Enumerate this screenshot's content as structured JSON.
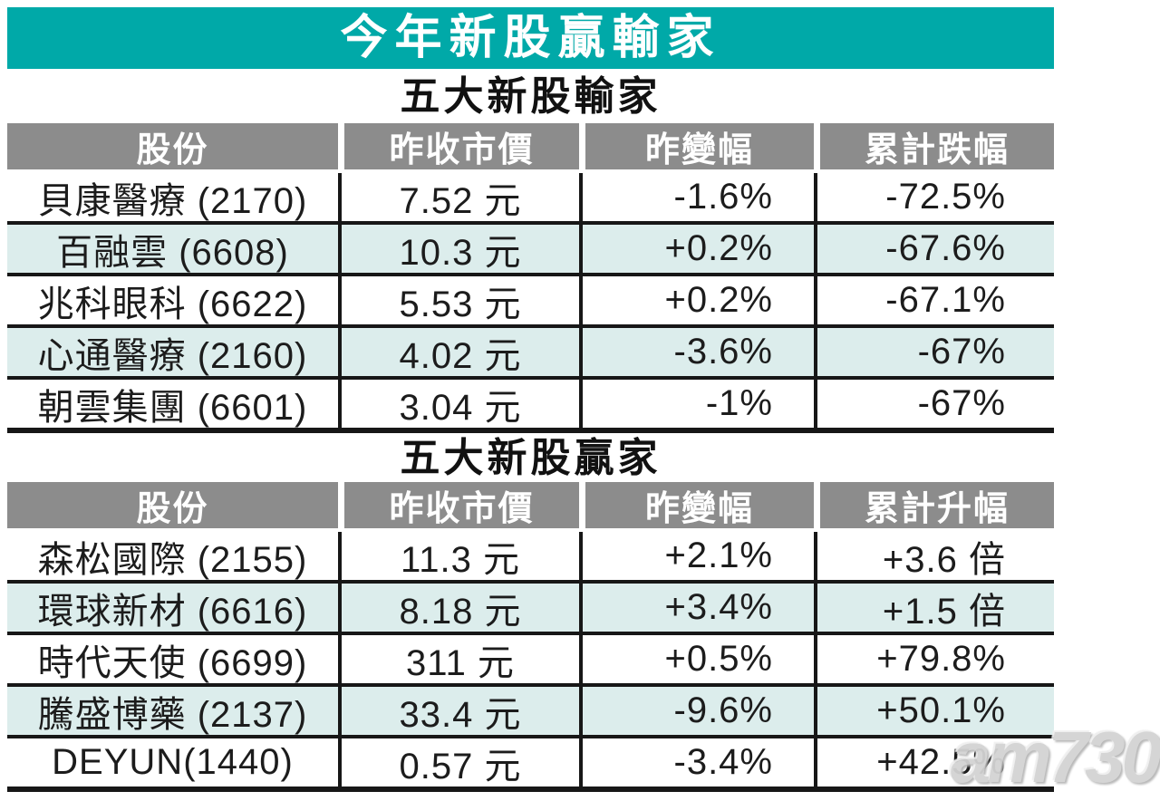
{
  "banner": {
    "title": "今年新股贏輸家"
  },
  "losers": {
    "section_title": "五大新股輸家",
    "headers": [
      "股份",
      "昨收市價",
      "昨變幅",
      "累計跌幅"
    ],
    "rows": [
      {
        "stock": "貝康醫療 (2170)",
        "price": "7.52 元",
        "change": "-1.6%",
        "total": "-72.5%"
      },
      {
        "stock": "百融雲 (6608)",
        "price": "10.3 元",
        "change": "+0.2%",
        "total": "-67.6%"
      },
      {
        "stock": "兆科眼科 (6622)",
        "price": "5.53 元",
        "change": "+0.2%",
        "total": "-67.1%"
      },
      {
        "stock": "心通醫療 (2160)",
        "price": "4.02 元",
        "change": "-3.6%",
        "total": "-67%"
      },
      {
        "stock": "朝雲集團 (6601)",
        "price": "3.04 元",
        "change": "-1%",
        "total": "-67%"
      }
    ]
  },
  "winners": {
    "section_title": "五大新股贏家",
    "headers": [
      "股份",
      "昨收市價",
      "昨變幅",
      "累計升幅"
    ],
    "rows": [
      {
        "stock": "森松國際 (2155)",
        "price": "11.3 元",
        "change": "+2.1%",
        "total": "+3.6 倍"
      },
      {
        "stock": "環球新材 (6616)",
        "price": "8.18 元",
        "change": "+3.4%",
        "total": "+1.5 倍"
      },
      {
        "stock": "時代天使 (6699)",
        "price": "311 元",
        "change": "+0.5%",
        "total": "+79.8%"
      },
      {
        "stock": "騰盛博藥 (2137)",
        "price": "33.4 元",
        "change": "-9.6%",
        "total": "+50.1%"
      },
      {
        "stock": "DEYUN(1440)",
        "price": "0.57 元",
        "change": "-3.4%",
        "total": "+42.5%"
      }
    ]
  },
  "watermark": {
    "text": "am730"
  },
  "colors": {
    "banner_teal": "#00a9a8",
    "header_gray": "#8c8c8c",
    "row_tint": "#dcedec",
    "line_black": "#171717",
    "watermark_gray": "#d3d3d3"
  },
  "chart_data": [
    {
      "type": "table",
      "title": "今年新股贏輸家 — 五大新股輸家",
      "columns": [
        "股份",
        "昨收市價",
        "昨變幅",
        "累計跌幅"
      ],
      "rows": [
        [
          "貝康醫療 (2170)",
          "7.52 元",
          "-1.6%",
          "-72.5%"
        ],
        [
          "百融雲 (6608)",
          "10.3 元",
          "+0.2%",
          "-67.6%"
        ],
        [
          "兆科眼科 (6622)",
          "5.53 元",
          "+0.2%",
          "-67.1%"
        ],
        [
          "心通醫療 (2160)",
          "4.02 元",
          "-3.6%",
          "-67%"
        ],
        [
          "朝雲集團 (6601)",
          "3.04 元",
          "-1%",
          "-67%"
        ]
      ]
    },
    {
      "type": "table",
      "title": "今年新股贏輸家 — 五大新股贏家",
      "columns": [
        "股份",
        "昨收市價",
        "昨變幅",
        "累計升幅"
      ],
      "rows": [
        [
          "森松國際 (2155)",
          "11.3 元",
          "+2.1%",
          "+3.6 倍"
        ],
        [
          "環球新材 (6616)",
          "8.18 元",
          "+3.4%",
          "+1.5 倍"
        ],
        [
          "時代天使 (6699)",
          "311 元",
          "+0.5%",
          "+79.8%"
        ],
        [
          "騰盛博藥 (2137)",
          "33.4 元",
          "-9.6%",
          "+50.1%"
        ],
        [
          "DEYUN(1440)",
          "0.57 元",
          "-3.4%",
          "+42.5%"
        ]
      ]
    }
  ]
}
